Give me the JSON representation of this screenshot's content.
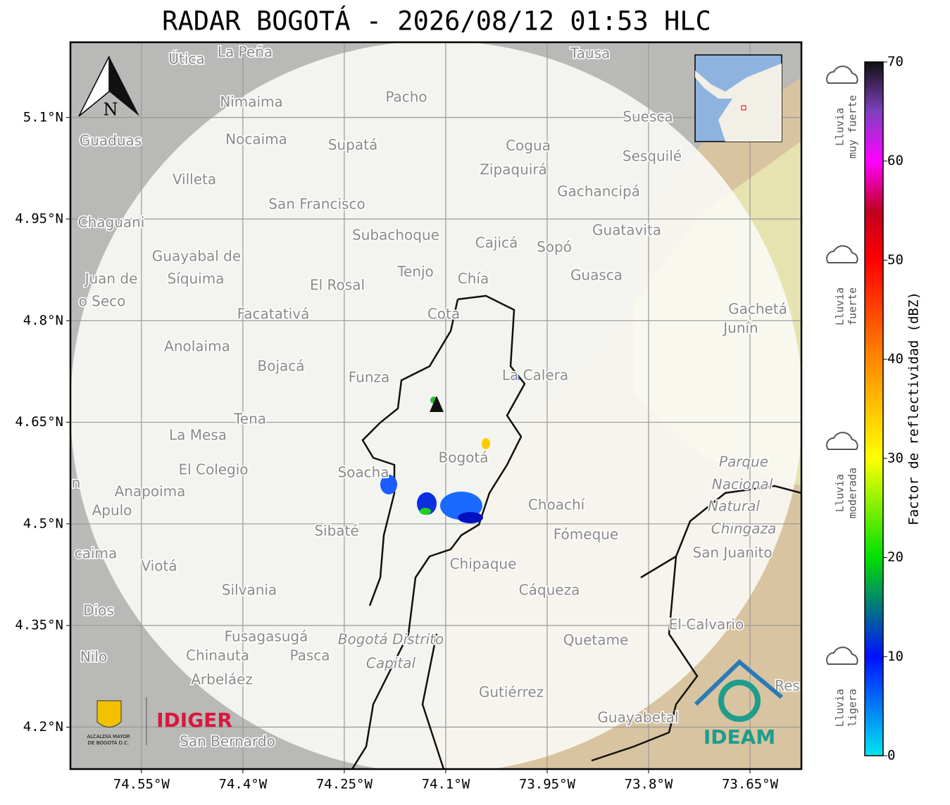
{
  "title": "RADAR BOGOTÁ - 2026/08/12 01:53 HLC",
  "map": {
    "xlim": [
      -74.655,
      -73.574
    ],
    "ylim": [
      4.138,
      5.211
    ],
    "xticks": [
      {
        "value": -74.55,
        "label": "74.55°W"
      },
      {
        "value": -74.4,
        "label": "74.4°W"
      },
      {
        "value": -74.25,
        "label": "74.25°W"
      },
      {
        "value": -74.1,
        "label": "74.1°W"
      },
      {
        "value": -73.95,
        "label": "73.95°W"
      },
      {
        "value": -73.8,
        "label": "73.8°W"
      },
      {
        "value": -73.65,
        "label": "73.65°W"
      }
    ],
    "yticks": [
      {
        "value": 5.1,
        "label": "5.1°N"
      },
      {
        "value": 4.95,
        "label": "4.95°N"
      },
      {
        "value": 4.8,
        "label": "4.8°N"
      },
      {
        "value": 4.65,
        "label": "4.65°N"
      },
      {
        "value": 4.5,
        "label": "4.5°N"
      },
      {
        "value": 4.35,
        "label": "4.35°N"
      },
      {
        "value": 4.2,
        "label": "4.2°N"
      }
    ],
    "grid": true,
    "north": "N",
    "places": [
      "La Peña",
      "Útica",
      "Tausa",
      "Pacho",
      "Nimaima",
      "Guaduas",
      "Nocaima",
      "Supatá",
      "Cogua",
      "Suesca",
      "Sesquilé",
      "Zipaquirá",
      "Villeta",
      "Gachancipá",
      "San Francisco",
      "Chaguani",
      "Guatavita",
      "Subachoque",
      "Cajicá",
      "Sopó",
      "Guayabal de",
      "Síquima",
      "Juan de",
      "o Seco",
      "Tenjo",
      "Chía",
      "El Rosal",
      "Guasca",
      "Facatativá",
      "Cota",
      "Gachetá",
      "Junín",
      "Anolaima",
      "Bojacá",
      "Funza",
      "La Calera",
      "Tena",
      "La Mesa",
      "Bogotá",
      "Parque",
      "Nacional",
      "Natural",
      "Chingaza",
      "El Colegio",
      "Soacha",
      "Anapoima",
      "Apulo",
      "Choachí",
      "Fómeque",
      "Sibaté",
      "San Juanito",
      "caima",
      "Viotá",
      "Chipaque",
      "Silvania",
      "Cáqueza",
      "Dios",
      "El Calvario",
      "Fusagasugá",
      "Quetame",
      "Bogotá Distrito",
      "Capital",
      "Nilo",
      "Chinauta",
      "Pasca",
      "Arbeláez",
      "Gutiérrez",
      "Guayabetal",
      "San Bernardo",
      "Res",
      "n"
    ],
    "logos": {
      "idiger": "IDIGER",
      "alcaldia": [
        "ALCALDÍA MAYOR",
        "DE BOGOTÁ D.C."
      ],
      "ideam": "IDEAM"
    }
  },
  "colorbar": {
    "lim": [
      0,
      70
    ],
    "ticks": [
      0,
      10,
      20,
      30,
      40,
      50,
      60,
      70
    ],
    "label": "Factor de reflectividad (dBZ)",
    "stops": [
      {
        "value": 0,
        "color": "#00e5f0"
      },
      {
        "value": 10,
        "color": "#0010ff"
      },
      {
        "value": 20,
        "color": "#00e000"
      },
      {
        "value": 30,
        "color": "#ffff00"
      },
      {
        "value": 40,
        "color": "#ff8800"
      },
      {
        "value": 50,
        "color": "#ff0000"
      },
      {
        "value": 55,
        "color": "#c00020"
      },
      {
        "value": 60,
        "color": "#ff00ff"
      },
      {
        "value": 65,
        "color": "#8040c0"
      },
      {
        "value": 70,
        "color": "#101010"
      }
    ],
    "categories": [
      [
        "Lluvia",
        "muy fuerte"
      ],
      [
        "Lluvia",
        "fuerte"
      ],
      [
        "Lluvia",
        "moderada"
      ],
      [
        "Lluvia",
        "ligera"
      ]
    ]
  }
}
